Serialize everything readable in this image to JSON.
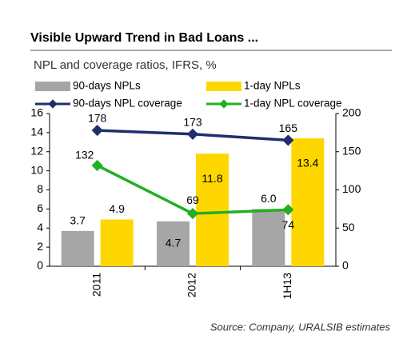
{
  "chart_data": {
    "type": "bar",
    "title": "Visible Upward Trend in Bad Loans ...",
    "subtitle": "NPL and coverage ratios, IFRS, %",
    "categories": [
      "2011",
      "2012",
      "1H13"
    ],
    "series": [
      {
        "name": "90-days NPLs",
        "color": "#a6a6a6",
        "type": "bar",
        "values": [
          3.7,
          4.7,
          6.0
        ],
        "value_labels": [
          "3.7",
          "4.7",
          "6.0"
        ]
      },
      {
        "name": "1-day NPLs",
        "color": "#ffd700",
        "type": "bar",
        "values": [
          4.9,
          11.8,
          13.4
        ]
      },
      {
        "name": "90-days NPL coverage",
        "color": "#1f2f6e",
        "type": "line",
        "axis": "y2",
        "values": [
          178,
          173,
          165
        ]
      },
      {
        "name": "1-day NPL coverage",
        "color": "#22b022",
        "type": "line",
        "axis": "y2",
        "values": [
          132,
          69,
          74
        ]
      }
    ],
    "ylim": [
      0,
      16
    ],
    "yticks": [
      0,
      2,
      4,
      6,
      8,
      10,
      12,
      14,
      16
    ],
    "y2lim": [
      0,
      200
    ],
    "y2ticks": [
      0,
      50,
      100,
      150,
      200
    ],
    "legend": "top",
    "grid": false,
    "source": "Source: Company, URALSIB estimates"
  }
}
